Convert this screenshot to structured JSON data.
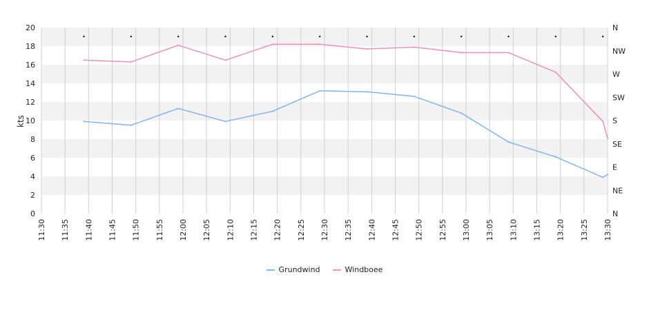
{
  "chart_data": {
    "type": "line",
    "title": "",
    "ylabel": "kts",
    "ylim": [
      0,
      20
    ],
    "yticks": [
      "0",
      "2",
      "4",
      "6",
      "8",
      "10",
      "12",
      "14",
      "16",
      "18",
      "20"
    ],
    "xlim": [
      "11:30",
      "13:30"
    ],
    "xticks": [
      "11:30",
      "11:35",
      "11:40",
      "11:45",
      "11:50",
      "11:55",
      "12:00",
      "12:05",
      "12:10",
      "12:15",
      "12:20",
      "12:25",
      "12:30",
      "12:35",
      "12:40",
      "12:45",
      "12:50",
      "12:55",
      "13:00",
      "13:05",
      "13:10",
      "13:15",
      "13:20",
      "13:25",
      "13:30"
    ],
    "right_axis_labels": [
      "N",
      "NE",
      "E",
      "SE",
      "S",
      "SW",
      "W",
      "NW",
      "N"
    ],
    "grid": true,
    "legend_position": "bottom",
    "series": [
      {
        "name": "Grundwind",
        "color": "#7fb6ef",
        "x": [
          "11:39",
          "11:49",
          "11:59",
          "12:09",
          "12:19",
          "12:29",
          "12:39",
          "12:49",
          "12:59",
          "13:09",
          "13:19",
          "13:29",
          "13:30"
        ],
        "values": [
          9.9,
          9.5,
          11.3,
          9.9,
          11.0,
          13.2,
          13.1,
          12.6,
          10.8,
          7.7,
          6.1,
          3.9,
          4.2
        ]
      },
      {
        "name": "Windboee",
        "color": "#ef8fb8",
        "x": [
          "11:39",
          "11:49",
          "11:59",
          "12:09",
          "12:19",
          "12:29",
          "12:39",
          "12:49",
          "12:59",
          "13:09",
          "13:19",
          "13:29",
          "13:30"
        ],
        "values": [
          16.5,
          16.3,
          18.1,
          16.5,
          18.2,
          18.2,
          17.7,
          17.9,
          17.3,
          17.3,
          15.2,
          9.9,
          8.1
        ]
      }
    ],
    "direction_markers_x": [
      "11:39",
      "11:49",
      "11:59",
      "12:09",
      "12:19",
      "12:29",
      "12:39",
      "12:49",
      "12:59",
      "13:09",
      "13:19",
      "13:29"
    ]
  }
}
